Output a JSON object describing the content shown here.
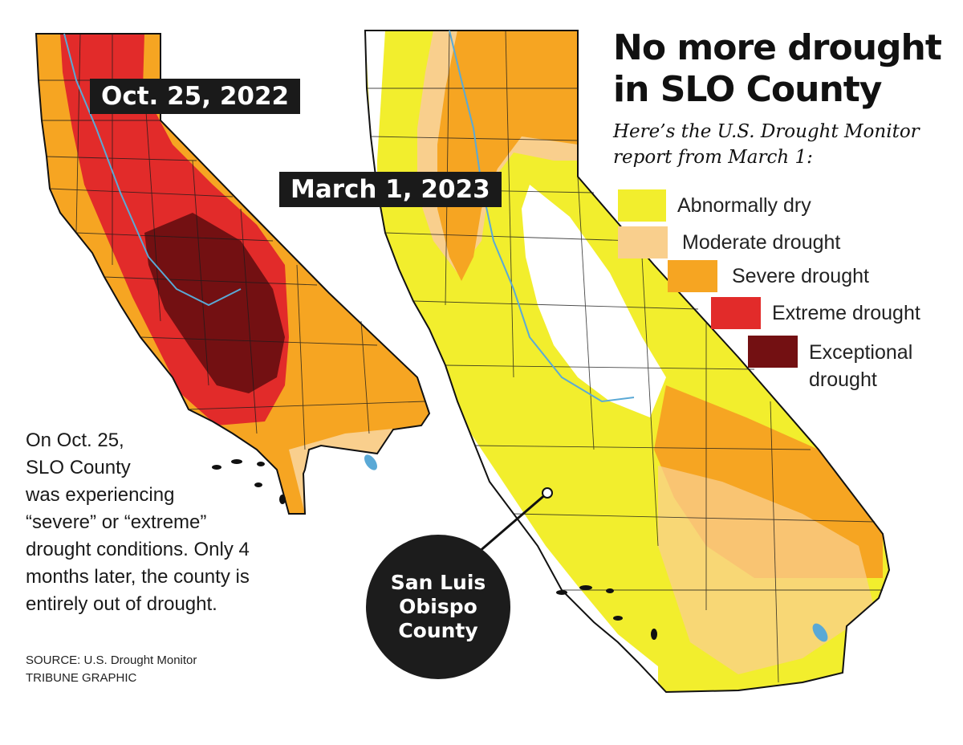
{
  "title": {
    "line1": "No more drought",
    "line2": "in SLO County"
  },
  "subtitle": {
    "line1": "Here’s the  U.S. Drought Monitor",
    "line2": "report from March 1:"
  },
  "maps": [
    {
      "date_label": "Oct. 25, 2022"
    },
    {
      "date_label": "March 1, 2023"
    }
  ],
  "legend": [
    {
      "label": "Abnormally dry",
      "color": "#f2ee2d"
    },
    {
      "label": "Moderate drought",
      "color": "#f9cf8d"
    },
    {
      "label": "Severe drought",
      "color": "#f6a522"
    },
    {
      "label": "Extreme drought",
      "color": "#e22b2a",
      "line2": ""
    },
    {
      "label": "Exceptional",
      "line2": "drought",
      "color": "#731012"
    }
  ],
  "note_lines": [
    "On Oct. 25,",
    "SLO County",
    "was experiencing",
    "“severe” or “extreme”",
    "drought conditions. Only 4",
    "months later, the county is",
    "entirely out of drought."
  ],
  "source": {
    "line1": "SOURCE: U.S. Drought Monitor",
    "line2": "TRIBUNE GRAPHIC"
  },
  "callout": {
    "line1": "San Luis",
    "line2": "Obispo",
    "line3": "County"
  },
  "colors": {
    "ink": "#111111",
    "water": "#5aa9d6",
    "no_drought": "#ffffff",
    "callout_bg": "#1c1c1c"
  }
}
